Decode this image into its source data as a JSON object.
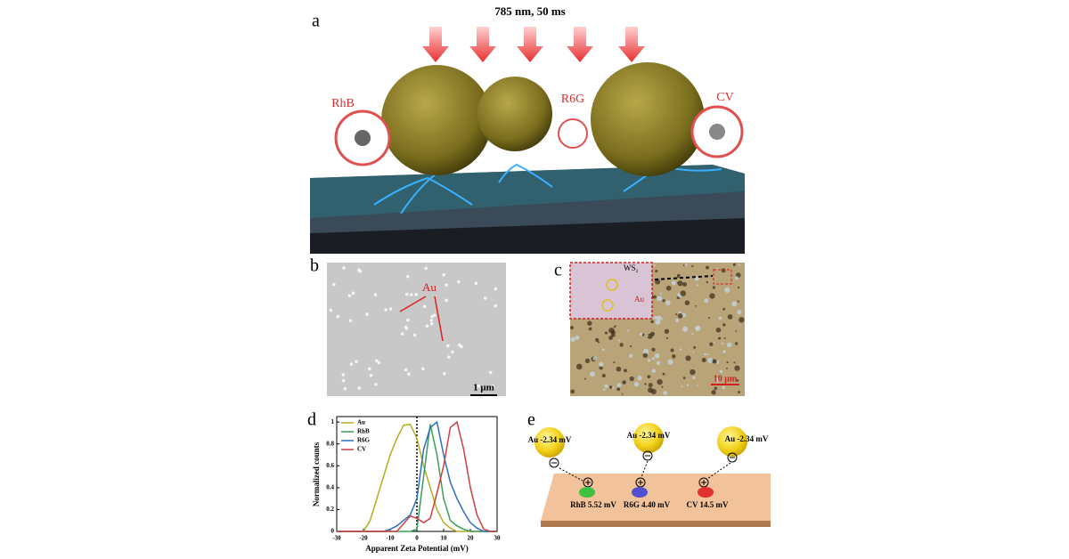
{
  "panel_a": {
    "label": "a",
    "laser": "785 nm, 50 ms",
    "molecules": [
      "RhB",
      "R6G",
      "CV"
    ]
  },
  "panel_b": {
    "label": "b",
    "annotation": "Au",
    "scale_bar": "1 μm"
  },
  "panel_c": {
    "label": "c",
    "inset_labels": [
      "WS₂",
      "Au"
    ],
    "scale_bar": "10 μm"
  },
  "chart_data": {
    "type": "line",
    "panel_label": "d",
    "x_label": "Apparent Zeta Potential (mV)",
    "y_label": "Normalized counts",
    "x": [
      -30,
      -27.5,
      -25,
      -22.5,
      -20,
      -17.5,
      -15,
      -12.5,
      -10,
      -7.5,
      -5,
      -2.5,
      0,
      2.5,
      5,
      7.5,
      10,
      12.5,
      15,
      17.5,
      20,
      22.5,
      25,
      27.5,
      30
    ],
    "series": [
      {
        "name": "Au",
        "color": "#b5ad1e",
        "values": [
          0,
          0,
          0,
          0,
          0,
          0.1,
          0.3,
          0.5,
          0.7,
          0.85,
          0.97,
          0.98,
          0.85,
          0.6,
          0.4,
          0.2,
          0.08,
          0.03,
          0,
          0,
          0,
          0,
          0,
          0,
          0
        ]
      },
      {
        "name": "RhB",
        "color": "#3a9d5a",
        "values": [
          0,
          0,
          0,
          0,
          0,
          0,
          0,
          0,
          0,
          0,
          0,
          0,
          0.02,
          0.5,
          0.98,
          0.7,
          0.3,
          0.1,
          0.05,
          0.02,
          0,
          0,
          0,
          0,
          0
        ]
      },
      {
        "name": "R6G",
        "color": "#2c6fc0",
        "values": [
          0,
          0,
          0,
          0,
          0,
          0,
          0,
          0,
          0.02,
          0.05,
          0.1,
          0.15,
          0.3,
          0.75,
          0.95,
          1.0,
          0.7,
          0.45,
          0.3,
          0.18,
          0.08,
          0.03,
          0,
          0,
          0
        ]
      },
      {
        "name": "CV",
        "color": "#d04040",
        "values": [
          0,
          0,
          0,
          0,
          0,
          0,
          0,
          0,
          0,
          0,
          0.07,
          0.14,
          0.12,
          0.08,
          0.12,
          0.35,
          0.6,
          0.95,
          1.0,
          0.75,
          0.4,
          0.15,
          0.02,
          0,
          0
        ]
      }
    ],
    "reference_line": 0,
    "xlim": [
      -30,
      30
    ],
    "xticks": [
      -30,
      -20,
      -10,
      0,
      10,
      20,
      30
    ],
    "ylim": [
      0,
      1.05
    ],
    "yticks": [
      0,
      0.2,
      0.4,
      0.6,
      0.8,
      1
    ],
    "legend": "upper left"
  },
  "panel_e": {
    "label": "e",
    "particles": [
      "Au -2.34 mV",
      "Au -2.34 mV",
      "Au -2.34 mV"
    ],
    "molecules": [
      "RhB 5.52 mV",
      "R6G 4.40 mV",
      "CV 14.5 mV"
    ]
  }
}
